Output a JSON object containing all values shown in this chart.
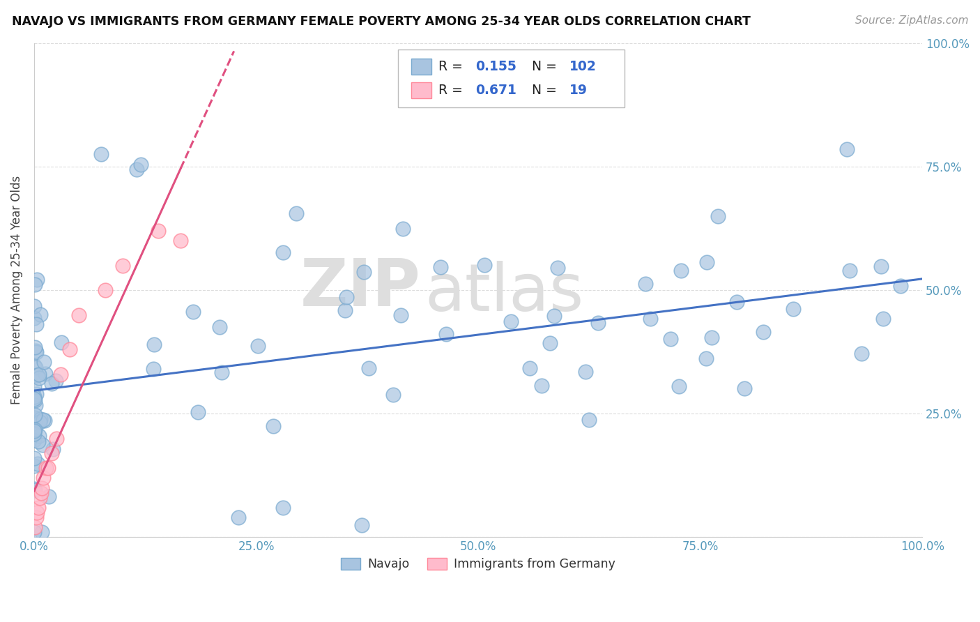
{
  "title": "NAVAJO VS IMMIGRANTS FROM GERMANY FEMALE POVERTY AMONG 25-34 YEAR OLDS CORRELATION CHART",
  "source": "Source: ZipAtlas.com",
  "ylabel": "Female Poverty Among 25-34 Year Olds",
  "watermark_zip": "ZIP",
  "watermark_atlas": "atlas",
  "xlim": [
    0,
    1.0
  ],
  "ylim": [
    0,
    1.0
  ],
  "xtick_vals": [
    0,
    0.25,
    0.5,
    0.75,
    1.0
  ],
  "ytick_vals": [
    0,
    0.25,
    0.5,
    0.75,
    1.0
  ],
  "xticklabels": [
    "0.0%",
    "25.0%",
    "50.0%",
    "75.0%",
    "100.0%"
  ],
  "right_yticklabels": [
    "",
    "25.0%",
    "50.0%",
    "75.0%",
    "100.0%"
  ],
  "navajo_face_color": "#A8C4E0",
  "navajo_edge_color": "#7AAAD0",
  "germany_face_color": "#FFBBCC",
  "germany_edge_color": "#FF8899",
  "navajo_R": 0.155,
  "navajo_N": 102,
  "germany_R": 0.671,
  "germany_N": 19,
  "rn_label_color": "#222222",
  "rn_value_color": "#3366CC",
  "navajo_line_color": "#4472C4",
  "germany_line_color": "#E05080",
  "background_color": "#FFFFFF",
  "grid_color": "#DDDDDD",
  "tick_label_color": "#5599BB",
  "navajo_seed": 42,
  "legend_navajo_label": "Navajo",
  "legend_germany_label": "Immigrants from Germany"
}
